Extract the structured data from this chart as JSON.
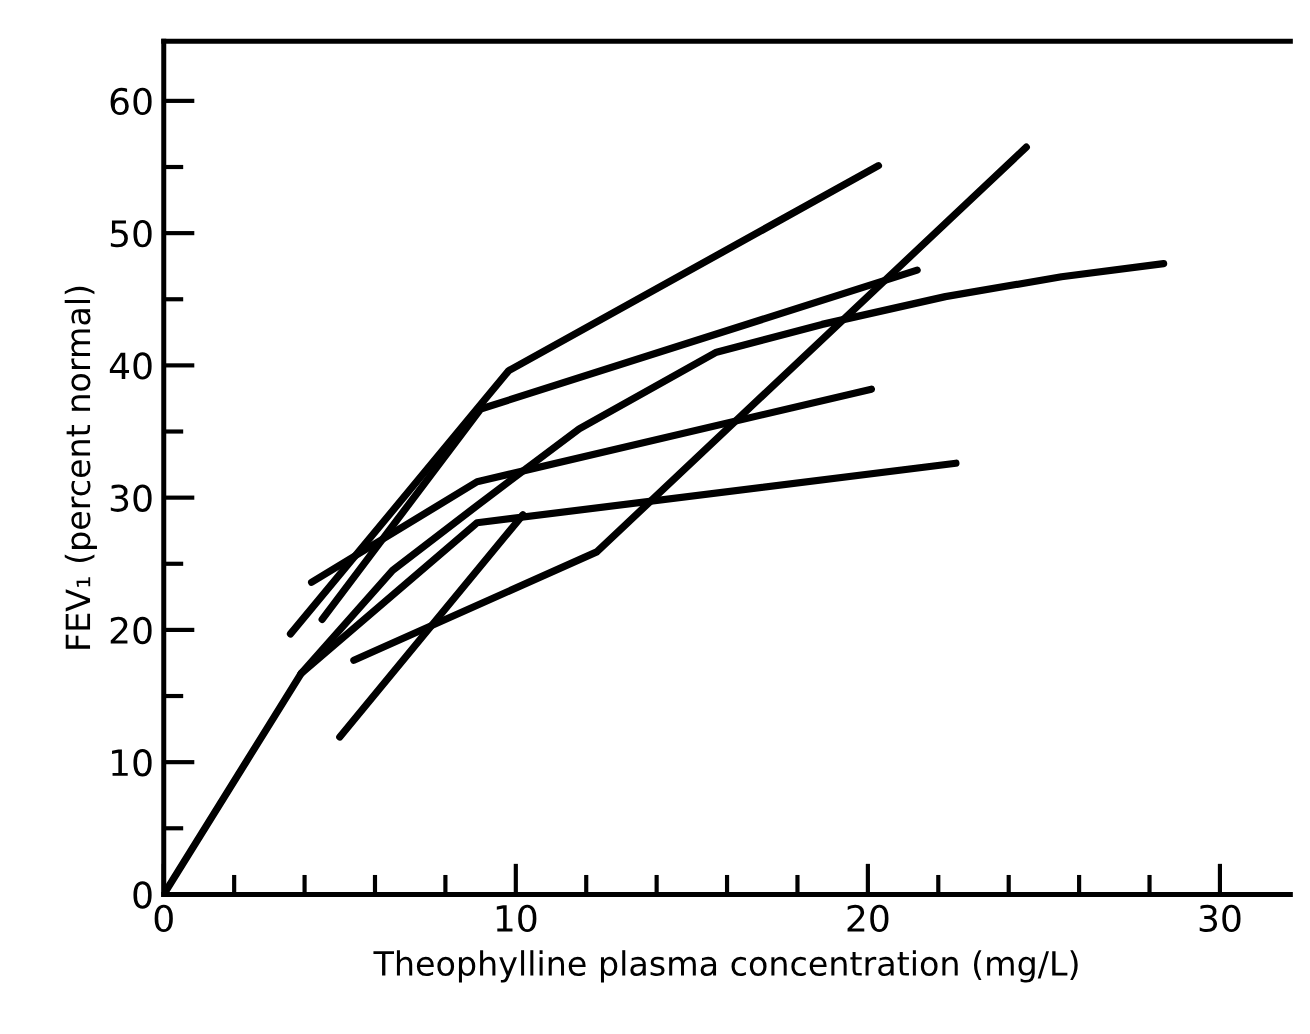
{
  "chart_data": {
    "type": "line",
    "xlabel": "Theophylline plasma concentration (mg/L)",
    "ylabel": "FEV₁ (percent normal)",
    "xlim": [
      0,
      32
    ],
    "ylim": [
      0,
      64.5
    ],
    "xticks": [
      0,
      {
        "value": 2,
        "label": null
      },
      {
        "value": 4,
        "label": null
      },
      {
        "value": 6,
        "label": null
      },
      {
        "value": 8,
        "label": null
      },
      10,
      {
        "value": 12,
        "label": null
      },
      {
        "value": 14,
        "label": null
      },
      {
        "value": 16,
        "label": null
      },
      {
        "value": 18,
        "label": null
      },
      20,
      {
        "value": 22,
        "label": null
      },
      {
        "value": 24,
        "label": null
      },
      {
        "value": 26,
        "label": null
      },
      {
        "value": 28,
        "label": null
      },
      30
    ],
    "yticks": [
      0,
      {
        "value": 5,
        "label": null
      },
      10,
      {
        "value": 15,
        "label": null
      },
      20,
      {
        "value": 25,
        "label": null
      },
      30,
      {
        "value": 35,
        "label": null
      },
      40,
      {
        "value": 45,
        "label": null
      },
      50,
      {
        "value": 55,
        "label": null
      },
      60
    ],
    "grid": false,
    "legend": false,
    "marker": "none",
    "line_style": "solid",
    "series": [
      {
        "color": "#000000",
        "x": [
          3.6,
          9.8,
          20.3
        ],
        "values": [
          19.7,
          39.6,
          55.1
        ]
      },
      {
        "color": "#000000",
        "x": [
          4.5,
          9.0,
          21.4
        ],
        "values": [
          20.8,
          36.7,
          47.2
        ]
      },
      {
        "color": "#000000",
        "x": [
          3.9,
          6.5,
          8.9,
          11.8,
          15.7,
          18.7,
          22.2,
          25.5,
          28.4
        ],
        "values": [
          16.7,
          24.5,
          29.4,
          35.2,
          41.0,
          43.1,
          45.2,
          46.7,
          47.7
        ]
      },
      {
        "color": "#000000",
        "x": [
          4.2,
          8.9,
          20.1
        ],
        "values": [
          23.6,
          31.2,
          38.2
        ]
      },
      {
        "color": "#000000",
        "x": [
          5.4,
          12.3,
          24.5
        ],
        "values": [
          17.7,
          25.9,
          56.5
        ]
      },
      {
        "color": "#000000",
        "x": [
          5.0,
          10.2
        ],
        "values": [
          11.9,
          28.7
        ]
      },
      {
        "color": "#000000",
        "x": [
          0,
          3.9,
          8.9,
          22.5
        ],
        "values": [
          0,
          16.7,
          28.1,
          32.6
        ]
      }
    ]
  }
}
